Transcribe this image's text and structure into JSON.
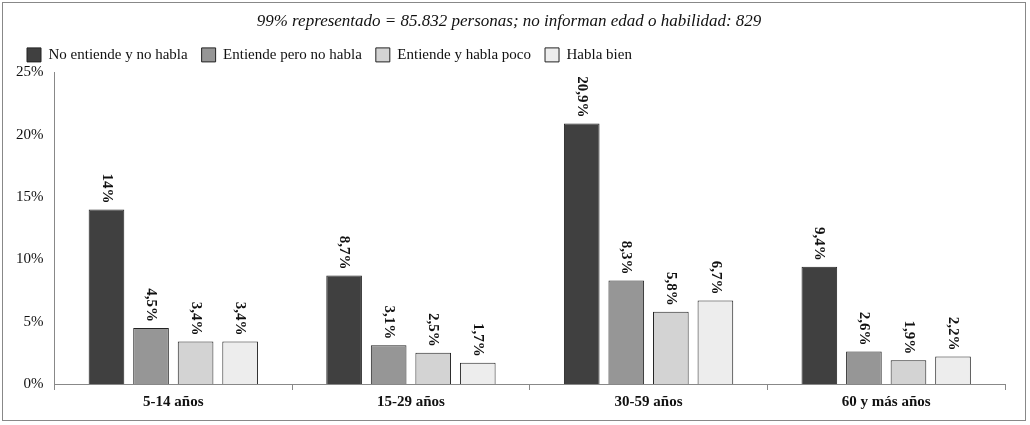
{
  "chart_data": {
    "type": "bar",
    "title": "99% representado = 85.832 personas; no informan edad o habilidad: 829",
    "categories": [
      "5-14 años",
      "15-29 años",
      "30-59 años",
      "60 y más años"
    ],
    "series": [
      {
        "name": "No entiende y no habla",
        "color": "#404040",
        "values": [
          14,
          8.7,
          20.9,
          9.4
        ],
        "value_labels": [
          "14%",
          "8,7%",
          "20,9%",
          "9,4%"
        ]
      },
      {
        "name": "Entiende pero no habla",
        "color": "#969696",
        "values": [
          4.5,
          3.1,
          8.3,
          2.6
        ],
        "value_labels": [
          "4,5%",
          "3,1%",
          "8,3%",
          "2,6%"
        ]
      },
      {
        "name": "Entiende y habla poco",
        "color": "#d3d3d3",
        "values": [
          3.4,
          2.5,
          5.8,
          1.9
        ],
        "value_labels": [
          "3,4%",
          "2,5%",
          "5,8%",
          "1,9%"
        ]
      },
      {
        "name": "Habla bien",
        "color": "#ededed",
        "values": [
          3.4,
          1.7,
          6.7,
          2.2
        ],
        "value_labels": [
          "3,4%",
          "1,7%",
          "6,7%",
          "2,2%"
        ]
      }
    ],
    "ylim": [
      0,
      25
    ],
    "yticks": [
      {
        "value": 0,
        "label": "0%"
      },
      {
        "value": 5,
        "label": "5%"
      },
      {
        "value": 10,
        "label": "10%"
      },
      {
        "value": 15,
        "label": "15%"
      },
      {
        "value": 20,
        "label": "20%"
      },
      {
        "value": 25,
        "label": "25%"
      }
    ],
    "legend": "top left"
  }
}
